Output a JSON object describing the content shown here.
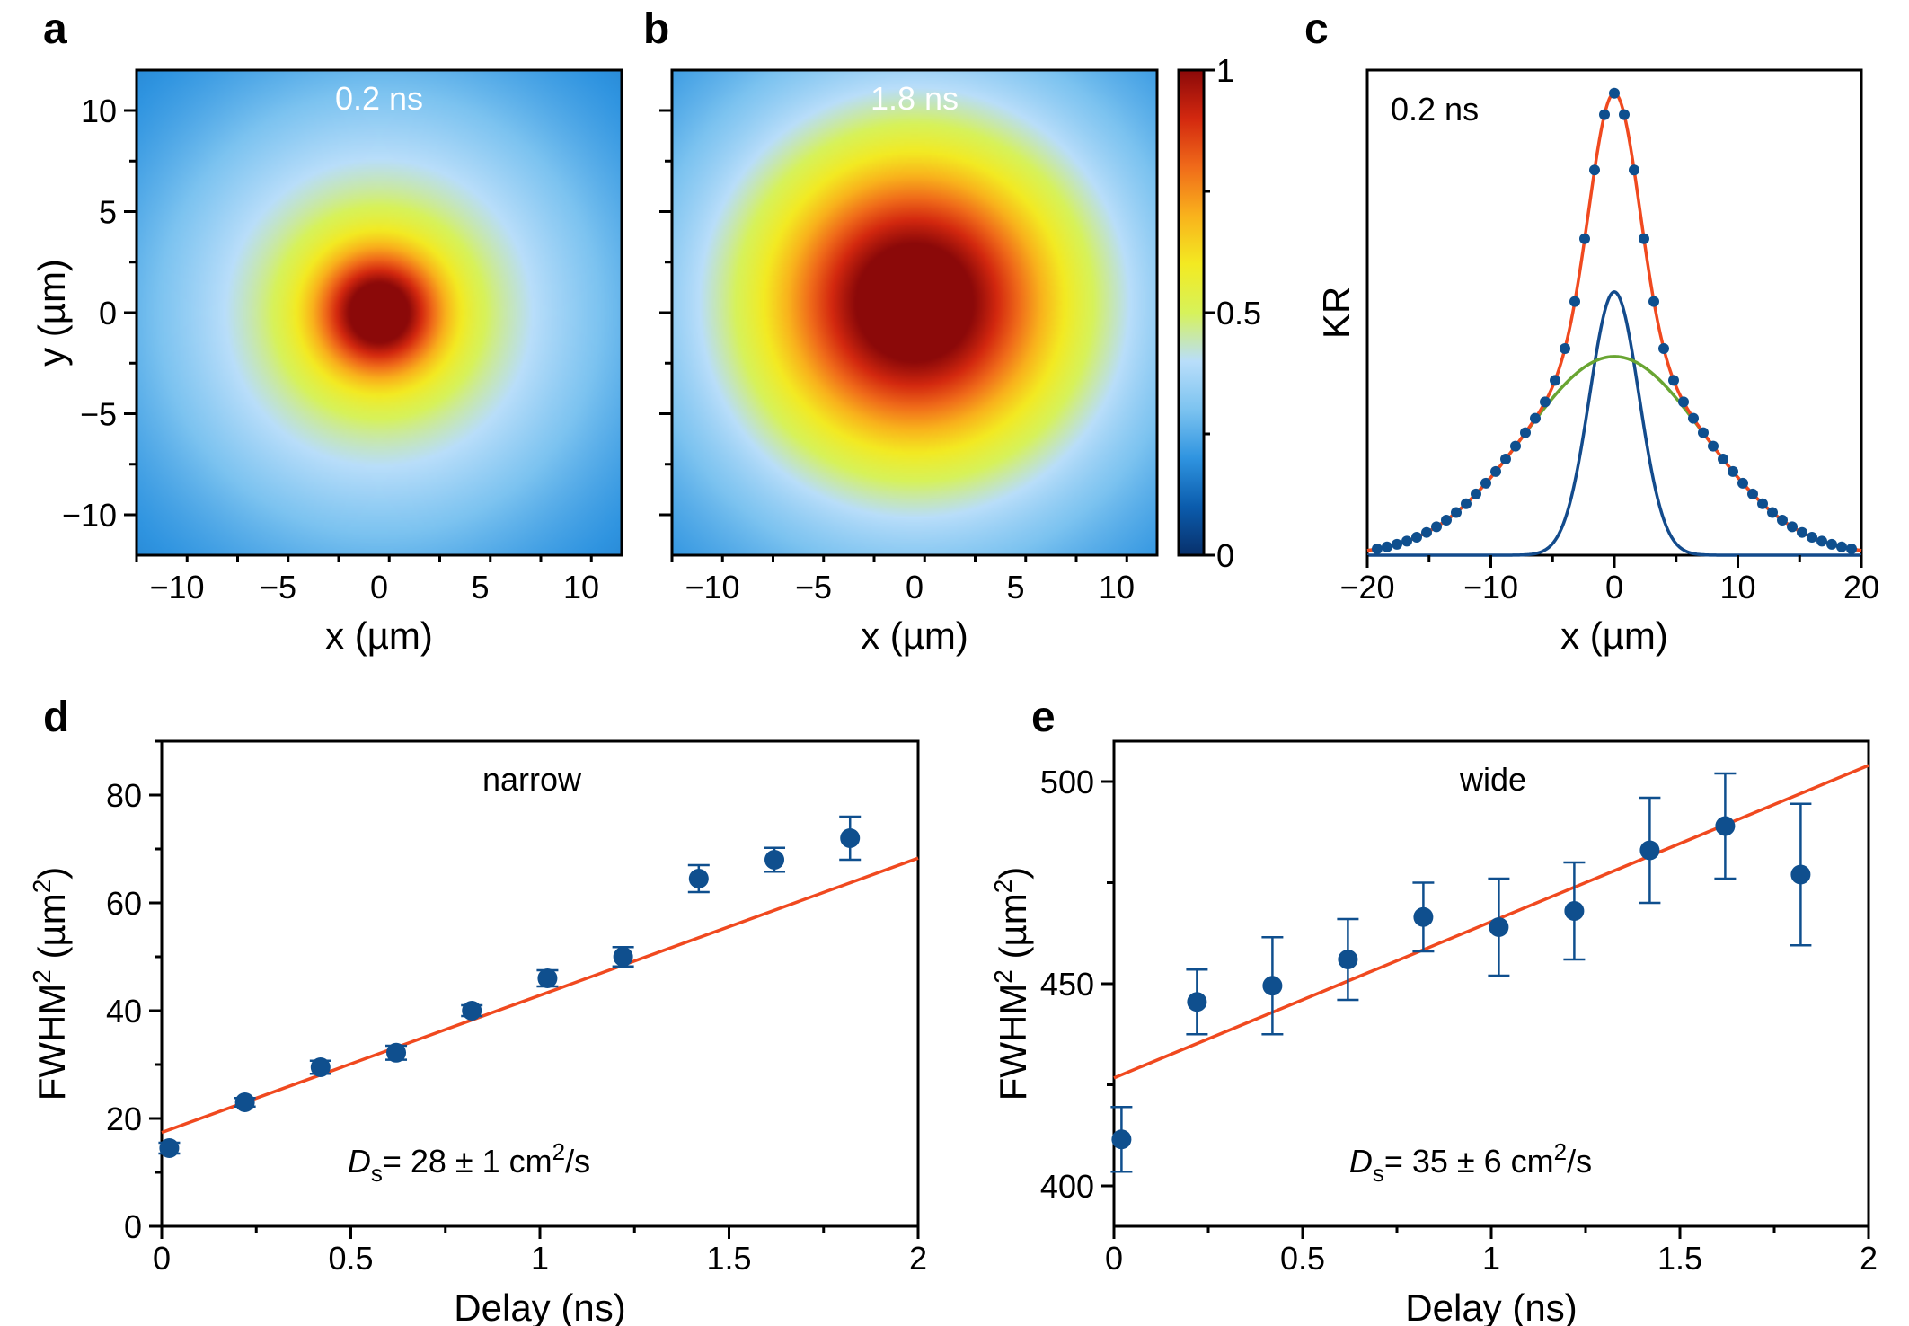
{
  "colors": {
    "fit_line": "#f0491f",
    "marker": "#0f4f8e",
    "gauss_narrow": "#134b8c",
    "gauss_wide": "#69a532"
  },
  "colormap": [
    "#08306b",
    "#0b5cad",
    "#2f94e0",
    "#7cc3f0",
    "#b9defa",
    "#d7f25a",
    "#f3ea22",
    "#f9b21c",
    "#f06b1a",
    "#d3280f",
    "#8b0909"
  ],
  "chart_data": [
    {
      "id": "a",
      "type": "heatmap",
      "letter": "a",
      "time_label": "0.2 ns",
      "xlabel": "x (µm)",
      "ylabel": "y (µm)",
      "xlim": [
        -12,
        12
      ],
      "ylim": [
        -12,
        12
      ],
      "xticks": [
        -10,
        -5,
        0,
        5,
        10
      ],
      "xtick_labels": [
        "−10",
        "−5",
        "0",
        "5",
        "10"
      ],
      "yticks": [
        -10,
        -5,
        0,
        5,
        10
      ],
      "ytick_labels": [
        "−10",
        "−5",
        "0",
        "5",
        "10"
      ],
      "spot": {
        "center": [
          0,
          0
        ],
        "narrow_sigma_um": 2.2,
        "narrow_amp": 0.62,
        "wide_sigma_um": 7.5,
        "wide_amp": 0.38
      }
    },
    {
      "id": "b",
      "type": "heatmap",
      "letter": "b",
      "time_label": "1.8 ns",
      "xlabel": "x (µm)",
      "xlim": [
        -12,
        12
      ],
      "ylim": [
        -12,
        12
      ],
      "xticks": [
        -10,
        -5,
        0,
        5,
        10
      ],
      "xtick_labels": [
        "−10",
        "−5",
        "0",
        "5",
        "10"
      ],
      "yticks": [
        -10,
        -5,
        0,
        5,
        10
      ],
      "spot": {
        "center": [
          0,
          0.5
        ],
        "narrow_sigma_um": 4.5,
        "narrow_amp": 0.55,
        "wide_sigma_um": 8.5,
        "wide_amp": 0.45
      },
      "colorbar": {
        "range": [
          0,
          1
        ],
        "ticks": [
          0,
          0.5,
          1
        ],
        "tick_labels": [
          "0",
          "0.5",
          "1"
        ]
      }
    },
    {
      "id": "c",
      "type": "line",
      "letter": "c",
      "time_label": "0.2 ns",
      "xlabel": "x (µm)",
      "ylabel": "KR",
      "xlim": [
        -20,
        20
      ],
      "ylim": [
        0,
        1.05
      ],
      "xticks": [
        -20,
        -10,
        0,
        10,
        20
      ],
      "xtick_labels": [
        "−20",
        "−10",
        "0",
        "10",
        "20"
      ],
      "model": {
        "narrow_amp": 0.57,
        "narrow_sigma": 2.0,
        "wide_amp": 0.43,
        "wide_sigma": 7.3
      },
      "scatter_x": [
        -19.2,
        -18.4,
        -17.6,
        -16.8,
        -16.0,
        -15.2,
        -14.4,
        -13.6,
        -12.8,
        -12.0,
        -11.2,
        -10.4,
        -9.6,
        -8.8,
        -8.0,
        -7.2,
        -6.4,
        -5.6,
        -4.8,
        -4.0,
        -3.2,
        -2.4,
        -1.6,
        -0.8,
        0.0,
        0.8,
        1.6,
        2.4,
        3.2,
        4.0,
        4.8,
        5.6,
        6.4,
        7.2,
        8.0,
        8.8,
        9.6,
        10.4,
        11.2,
        12.0,
        12.8,
        13.6,
        14.4,
        15.2,
        16.0,
        16.8,
        17.6,
        18.4,
        19.2
      ]
    },
    {
      "id": "d",
      "type": "scatter",
      "letter": "d",
      "inner_label": "narrow",
      "xlabel": "Delay (ns)",
      "ylabel_main": "FWHM",
      "ylabel_tail": " (µm",
      "ylabel_close": ")",
      "ylabel_sup": "2",
      "xlim": [
        0,
        2
      ],
      "ylim": [
        0,
        90
      ],
      "xticks": [
        0,
        0.5,
        1,
        1.5,
        2
      ],
      "xtick_labels": [
        "0",
        "0.5",
        "1",
        "1.5",
        "2"
      ],
      "yticks": [
        0,
        20,
        40,
        60,
        80
      ],
      "ytick_labels": [
        "0",
        "20",
        "40",
        "60",
        "80"
      ],
      "x": [
        0.02,
        0.22,
        0.42,
        0.62,
        0.82,
        1.02,
        1.22,
        1.42,
        1.62,
        1.82
      ],
      "y": [
        14.5,
        23.0,
        29.5,
        32.2,
        40.0,
        46.0,
        50.0,
        64.5,
        68.0,
        72.0
      ],
      "yerr": [
        1.0,
        0.8,
        1.2,
        1.3,
        1.0,
        1.5,
        1.8,
        2.5,
        2.2,
        4.0
      ],
      "fit": {
        "x": [
          0,
          2
        ],
        "y": [
          17.4,
          68.3
        ]
      },
      "annotation": {
        "D": "D",
        "sub": "s",
        "pre": "= 28 ± 1 cm",
        "sup": "2",
        "post": "/s"
      }
    },
    {
      "id": "e",
      "type": "scatter",
      "letter": "e",
      "inner_label": "wide",
      "xlabel": "Delay (ns)",
      "ylabel_main": "FWHM",
      "ylabel_tail": " (µm",
      "ylabel_close": ")",
      "ylabel_sup": "2",
      "xlim": [
        0,
        2
      ],
      "ylim": [
        390,
        510
      ],
      "xticks": [
        0,
        0.5,
        1,
        1.5,
        2
      ],
      "xtick_labels": [
        "0",
        "0.5",
        "1",
        "1.5",
        "2"
      ],
      "yticks": [
        400,
        450,
        500
      ],
      "ytick_labels": [
        "400",
        "450",
        "500"
      ],
      "x": [
        0.02,
        0.22,
        0.42,
        0.62,
        0.82,
        1.02,
        1.22,
        1.42,
        1.62,
        1.82
      ],
      "y": [
        411.5,
        445.5,
        449.5,
        456.0,
        466.5,
        464.0,
        468.0,
        483.0,
        489.0,
        477.0
      ],
      "yerr": [
        8,
        8,
        12,
        10,
        8.5,
        12,
        12,
        13,
        13,
        17.5
      ],
      "fit": {
        "x": [
          0,
          2
        ],
        "y": [
          426.7,
          504.0
        ]
      },
      "annotation": {
        "D": "D",
        "sub": "s",
        "pre": "= 35 ± 6 cm",
        "sup": "2",
        "post": "/s"
      }
    }
  ]
}
